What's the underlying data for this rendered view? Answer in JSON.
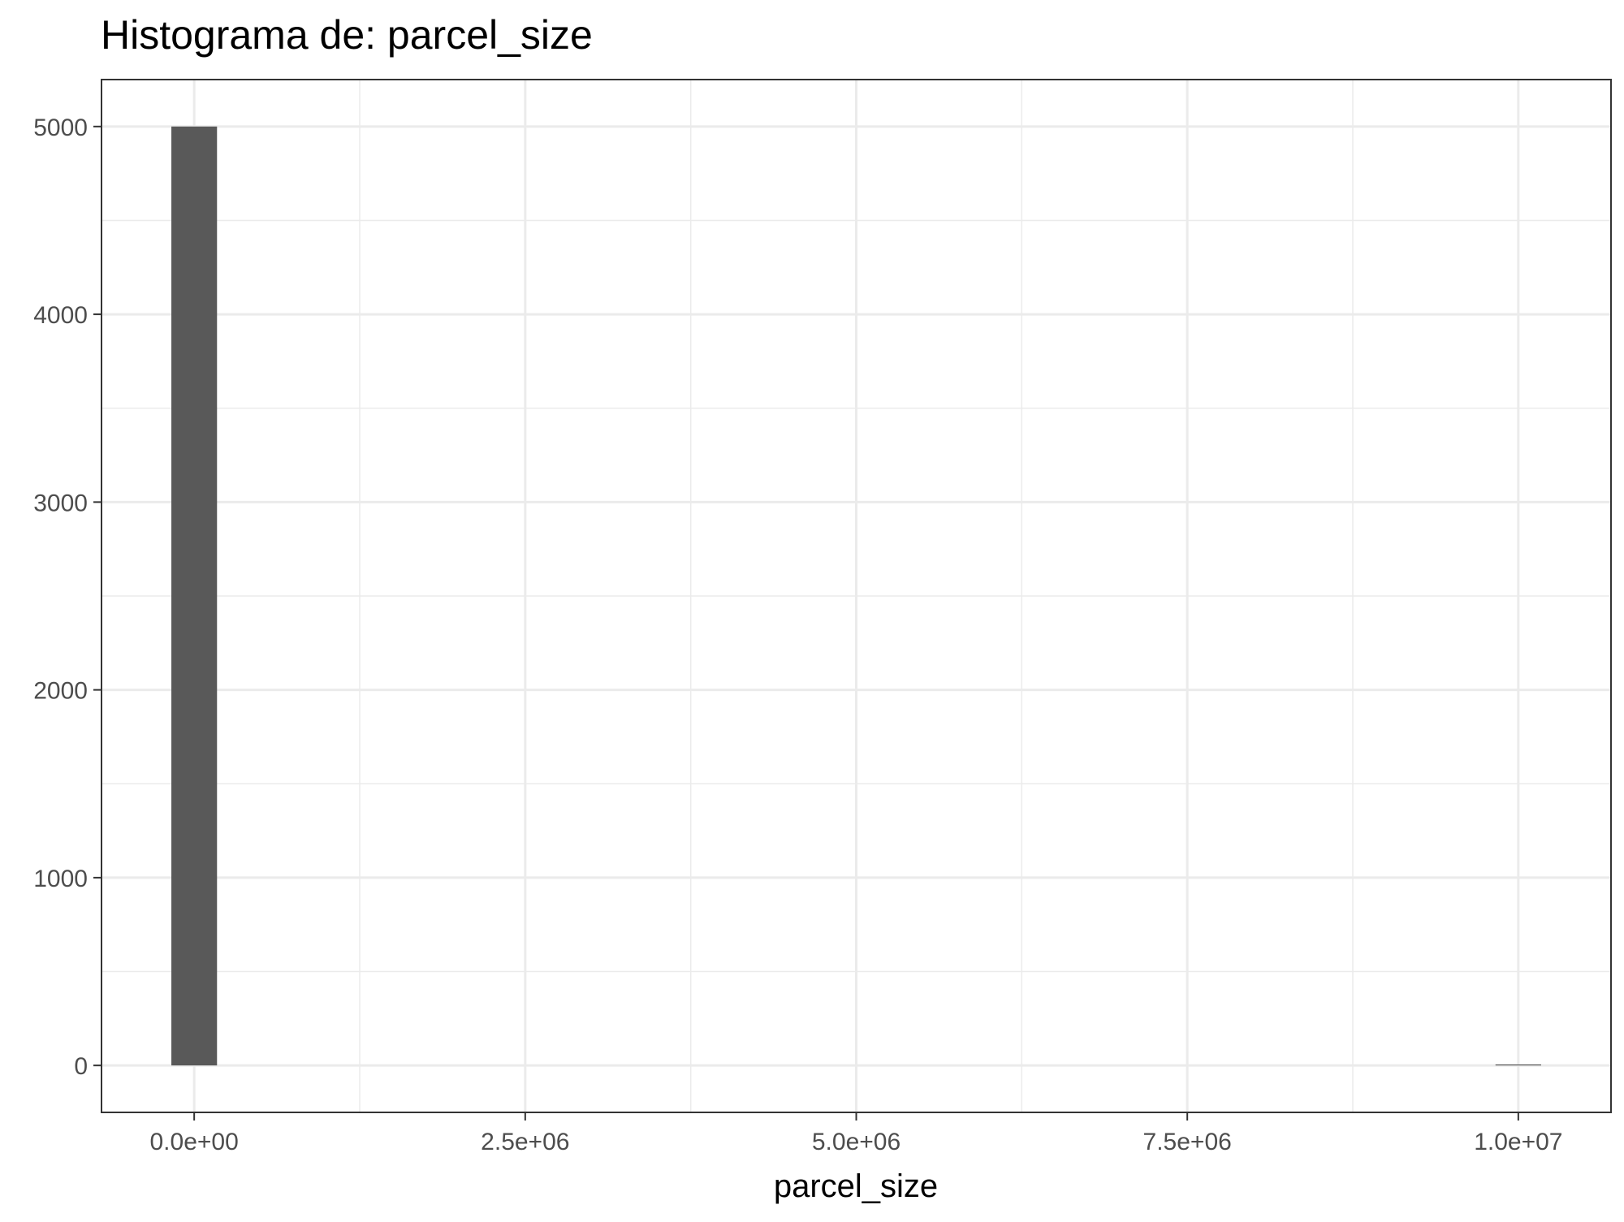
{
  "chart_data": {
    "type": "bar",
    "title": "Histograma de: parcel_size",
    "xlabel": "parcel_size",
    "ylabel": "",
    "xlim": [
      -700000,
      10700000
    ],
    "ylim": [
      -250,
      5250
    ],
    "x_ticks": [
      0,
      2500000,
      5000000,
      7500000,
      10000000
    ],
    "x_tick_labels": [
      "0.0e+00",
      "2.5e+06",
      "5.0e+06",
      "7.5e+06",
      "1.0e+07"
    ],
    "y_ticks": [
      0,
      1000,
      2000,
      3000,
      4000,
      5000
    ],
    "y_tick_labels": [
      "0",
      "1000",
      "2000",
      "3000",
      "4000",
      "5000"
    ],
    "grid": true,
    "legend": "none",
    "bin_width": 344828,
    "bins": [
      {
        "x_start": -172414,
        "x_end": 172414,
        "count": 5000
      },
      {
        "x_start": 9827586,
        "x_end": 10172414,
        "count": 1
      }
    ],
    "colors": {
      "bar": "#595959",
      "grid": "#ebebeb",
      "panel_border": "#333333",
      "text": "#4d4d4d",
      "title": "#000000"
    }
  }
}
